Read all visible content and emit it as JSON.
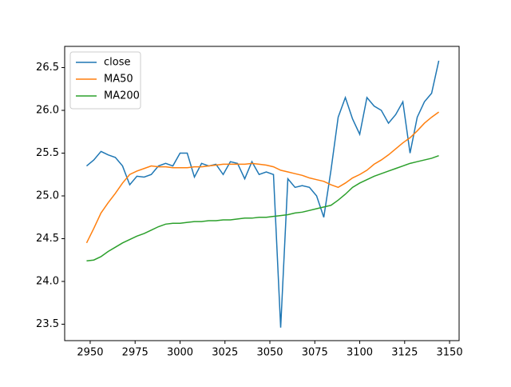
{
  "chart_data": {
    "type": "line",
    "x": [
      2948,
      2952,
      2956,
      2960,
      2964,
      2968,
      2972,
      2976,
      2980,
      2984,
      2988,
      2992,
      2996,
      3000,
      3004,
      3008,
      3012,
      3016,
      3020,
      3024,
      3028,
      3032,
      3036,
      3040,
      3044,
      3048,
      3052,
      3056,
      3060,
      3064,
      3068,
      3072,
      3076,
      3080,
      3084,
      3088,
      3092,
      3096,
      3100,
      3104,
      3108,
      3112,
      3116,
      3120,
      3124,
      3128,
      3132,
      3136,
      3140,
      3144
    ],
    "series": [
      {
        "name": "close",
        "color": "#1f77b4",
        "values": [
          25.35,
          25.42,
          25.52,
          25.48,
          25.45,
          25.35,
          25.13,
          25.23,
          25.22,
          25.25,
          25.35,
          25.38,
          25.35,
          25.5,
          25.5,
          25.22,
          25.38,
          25.35,
          25.37,
          25.25,
          25.4,
          25.38,
          25.2,
          25.4,
          25.25,
          25.28,
          25.25,
          23.46,
          25.2,
          25.1,
          25.12,
          25.1,
          25.0,
          24.75,
          25.3,
          25.92,
          26.15,
          25.9,
          25.72,
          26.15,
          26.05,
          26.0,
          25.85,
          25.95,
          26.1,
          25.5,
          25.92,
          26.1,
          26.2,
          26.58
        ]
      },
      {
        "name": "MA50",
        "color": "#ff7f0e",
        "values": [
          24.45,
          24.62,
          24.8,
          24.92,
          25.03,
          25.15,
          25.25,
          25.29,
          25.32,
          25.35,
          25.34,
          25.34,
          25.33,
          25.33,
          25.33,
          25.34,
          25.34,
          25.35,
          25.36,
          25.37,
          25.37,
          25.37,
          25.37,
          25.38,
          25.37,
          25.36,
          25.34,
          25.3,
          25.28,
          25.26,
          25.24,
          25.21,
          25.19,
          25.17,
          25.13,
          25.1,
          25.15,
          25.21,
          25.25,
          25.3,
          25.37,
          25.42,
          25.48,
          25.55,
          25.62,
          25.68,
          25.76,
          25.85,
          25.92,
          25.98
        ]
      },
      {
        "name": "MA200",
        "color": "#2ca02c",
        "values": [
          24.24,
          24.25,
          24.29,
          24.35,
          24.4,
          24.45,
          24.49,
          24.53,
          24.56,
          24.6,
          24.64,
          24.67,
          24.68,
          24.68,
          24.69,
          24.7,
          24.7,
          24.71,
          24.71,
          24.72,
          24.72,
          24.73,
          24.74,
          24.74,
          24.75,
          24.75,
          24.76,
          24.77,
          24.78,
          24.8,
          24.81,
          24.83,
          24.85,
          24.87,
          24.89,
          24.95,
          25.02,
          25.1,
          25.15,
          25.19,
          25.23,
          25.26,
          25.29,
          25.32,
          25.35,
          25.38,
          25.4,
          25.42,
          25.44,
          25.47
        ]
      }
    ],
    "xlim": [
      2935.8,
      3155.3
    ],
    "xticks": [
      2950,
      2975,
      3000,
      3025,
      3050,
      3075,
      3100,
      3125,
      3150
    ],
    "ylim": [
      23.308,
      26.748
    ],
    "yticks": [
      23.5,
      {
        "value": 24,
        "label": "24.0"
      },
      24.5,
      {
        "value": 25,
        "label": "25.0"
      },
      25.5,
      {
        "value": 26,
        "label": "26.0"
      },
      26.5
    ],
    "legend": "upper left",
    "grid": false
  }
}
